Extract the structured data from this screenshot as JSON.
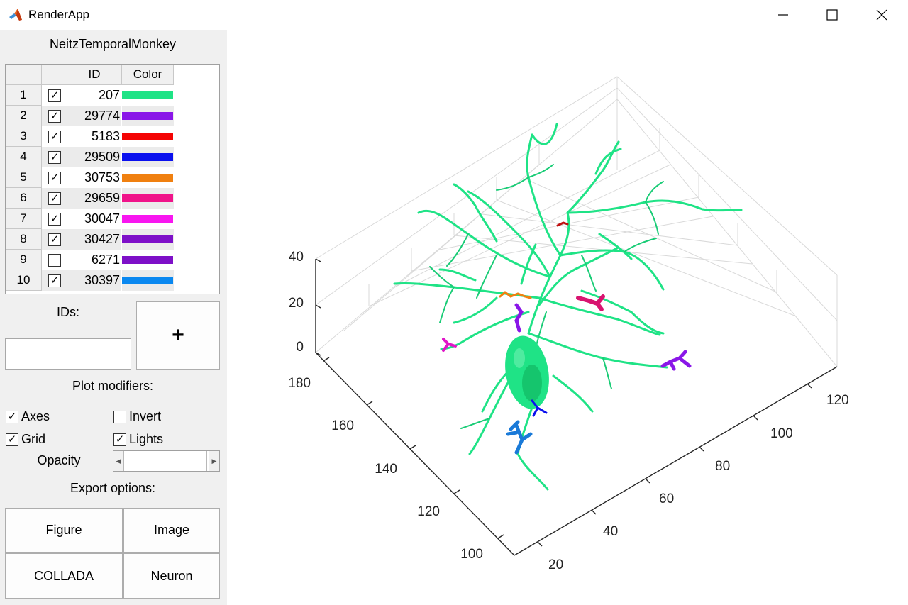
{
  "window": {
    "title": "RenderApp"
  },
  "sidebar": {
    "dataset": "NeitzTemporalMonkey",
    "table": {
      "headers": [
        "",
        "",
        "ID",
        "Color"
      ],
      "rows": [
        {
          "num": "1",
          "checked": true,
          "id": "207",
          "color": "#1fe386"
        },
        {
          "num": "2",
          "checked": true,
          "id": "29774",
          "color": "#8a16e8"
        },
        {
          "num": "3",
          "checked": true,
          "id": "5183",
          "color": "#f40404"
        },
        {
          "num": "4",
          "checked": true,
          "id": "29509",
          "color": "#0a10ee"
        },
        {
          "num": "5",
          "checked": true,
          "id": "30753",
          "color": "#f08010"
        },
        {
          "num": "6",
          "checked": true,
          "id": "29659",
          "color": "#f0148a"
        },
        {
          "num": "7",
          "checked": true,
          "id": "30047",
          "color": "#f816f0"
        },
        {
          "num": "8",
          "checked": true,
          "id": "30427",
          "color": "#7e10c8"
        },
        {
          "num": "9",
          "checked": false,
          "id": "6271",
          "color": "#7e10c8"
        },
        {
          "num": "10",
          "checked": true,
          "id": "30397",
          "color": "#0a88f0"
        }
      ]
    },
    "ids_label": "IDs:",
    "ids_value": "",
    "add_label": "+",
    "modifiers_label": "Plot modifiers:",
    "modifiers": {
      "axes": {
        "label": "Axes",
        "checked": true
      },
      "invert": {
        "label": "Invert",
        "checked": false
      },
      "grid": {
        "label": "Grid",
        "checked": true
      },
      "lights": {
        "label": "Lights",
        "checked": true
      }
    },
    "opacity_label": "Opacity",
    "export_label": "Export options:",
    "export": {
      "figure": "Figure",
      "image": "Image",
      "collada": "COLLADA",
      "neuron": "Neuron"
    }
  },
  "plot": {
    "z_ticks": [
      "40",
      "20",
      "0"
    ],
    "y_ticks": [
      "180",
      "160",
      "140",
      "120",
      "100"
    ],
    "x_ticks": [
      "20",
      "40",
      "60",
      "80",
      "100",
      "120"
    ],
    "soma_color": "#1fe386",
    "soma_dark": "#11b862",
    "grid_color": "#d9d9d9",
    "axis_color": "#262626"
  }
}
